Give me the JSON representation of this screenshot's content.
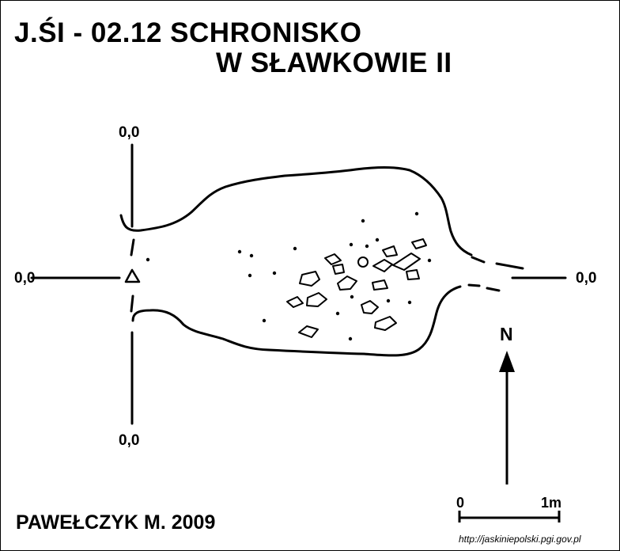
{
  "title": {
    "line1": "J.ŚI - 02.12 SCHRONISKO",
    "line2": "W SŁAWKOWIE II"
  },
  "coordinates": {
    "top": "0,0",
    "left": "0,0",
    "right": "0,0",
    "bottom": "0,0"
  },
  "north_label": "N",
  "scale": {
    "start": "0",
    "end": "1m"
  },
  "author": "PAWEŁCZYK M. 2009",
  "source_url": "http://jaskiniepolski.pgi.gov.pl",
  "colors": {
    "ink": "#000000",
    "background": "#ffffff"
  }
}
